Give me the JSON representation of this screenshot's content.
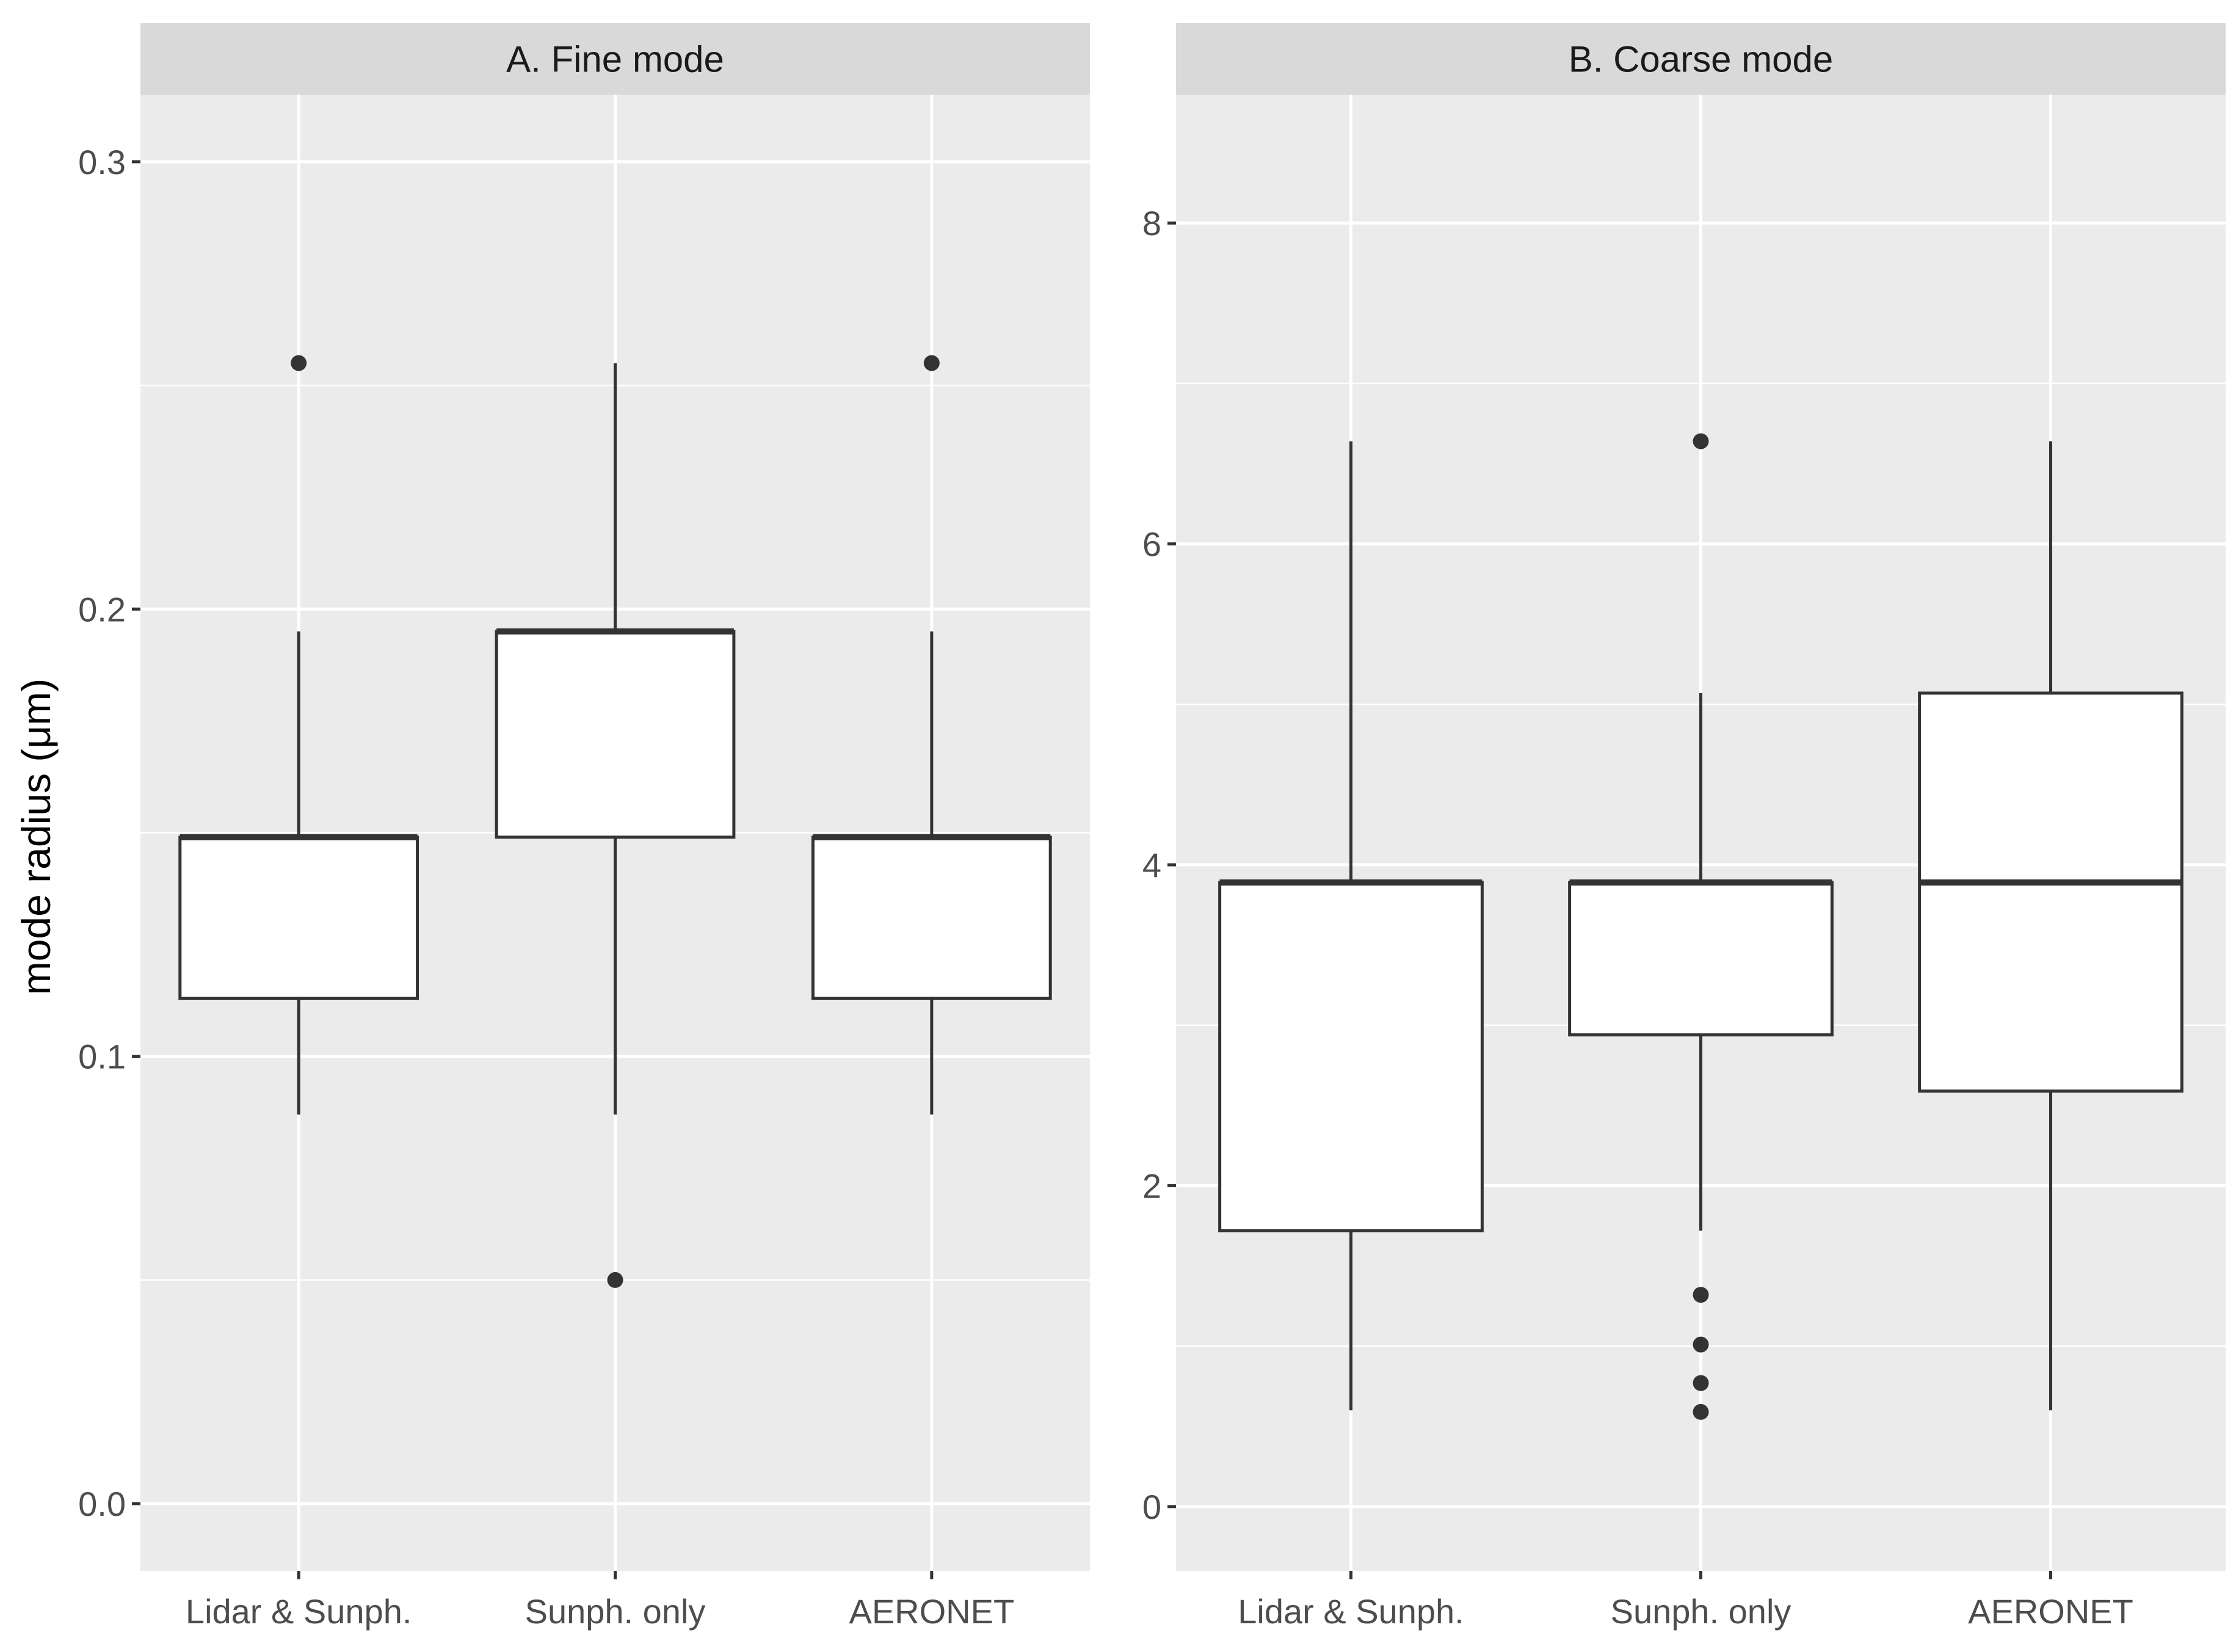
{
  "chart_data": {
    "type": "boxplot",
    "ylabel": "mode radius (μm)",
    "xlabel": "",
    "categories": [
      "Lidar & Sunph.",
      "Sunph. only",
      "AERONET"
    ],
    "panels": [
      {
        "title": "A. Fine mode",
        "ylim": [
          -0.015,
          0.315
        ],
        "yticks": [
          0.0,
          0.1,
          0.2,
          0.3
        ],
        "ytick_labels": [
          "0.0",
          "0.1",
          "0.2",
          "0.3"
        ],
        "boxes": [
          {
            "category": "Lidar & Sunph.",
            "lower_whisker": 0.087,
            "q1": 0.113,
            "median": 0.149,
            "q3": 0.149,
            "upper_whisker": 0.195,
            "outliers": [
              0.255
            ]
          },
          {
            "category": "Sunph. only",
            "lower_whisker": 0.087,
            "q1": 0.149,
            "median": 0.195,
            "q3": 0.195,
            "upper_whisker": 0.255,
            "outliers": [
              0.05
            ]
          },
          {
            "category": "AERONET",
            "lower_whisker": 0.087,
            "q1": 0.113,
            "median": 0.149,
            "q3": 0.149,
            "upper_whisker": 0.195,
            "outliers": [
              0.255
            ]
          }
        ]
      },
      {
        "title": "B. Coarse mode",
        "ylim": [
          -0.4,
          8.8
        ],
        "yticks": [
          0,
          2,
          4,
          6,
          8
        ],
        "ytick_labels": [
          "0",
          "2",
          "4",
          "6",
          "8"
        ],
        "boxes": [
          {
            "category": "Lidar & Sunph.",
            "lower_whisker": 0.6,
            "q1": 1.72,
            "median": 3.89,
            "q3": 3.89,
            "upper_whisker": 6.64,
            "outliers": []
          },
          {
            "category": "Sunph. only",
            "lower_whisker": 1.72,
            "q1": 2.94,
            "median": 3.89,
            "q3": 3.89,
            "upper_whisker": 5.07,
            "outliers": [
              6.64,
              1.32,
              1.01,
              0.77,
              0.59
            ]
          },
          {
            "category": "AERONET",
            "lower_whisker": 0.6,
            "q1": 2.59,
            "median": 3.89,
            "q3": 5.07,
            "upper_whisker": 6.64,
            "outliers": []
          }
        ]
      }
    ]
  }
}
